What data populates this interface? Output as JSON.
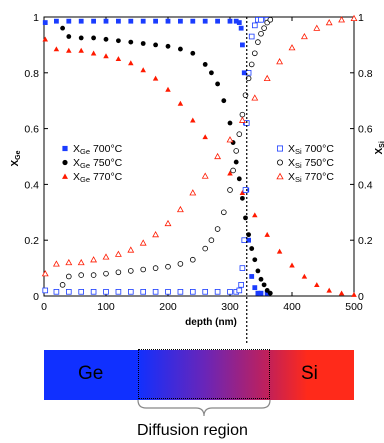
{
  "chart_data": {
    "type": "scatter",
    "xlabel": "depth (nm)",
    "ylabel_main": "X",
    "ylabel_sub": "Ge",
    "ylabel_right_main": "X",
    "ylabel_right_sub": "Si",
    "xlim": [
      0,
      500
    ],
    "ylim": [
      0,
      1
    ],
    "x_ticks": [
      "0",
      "100",
      "200",
      "300",
      "400",
      "500"
    ],
    "y_ticks": [
      "0",
      "0.2",
      "0.4",
      "0.6",
      "0.8",
      "1"
    ],
    "y_ticks_right": [
      "0",
      "0.2",
      "0.4",
      "0.6",
      "0.8",
      "1"
    ],
    "divider_x": 327,
    "series": [
      {
        "name": "700°C",
        "element": "Ge",
        "marker": "square-filled",
        "color": "#1a3cff",
        "x": [
          2,
          20,
          40,
          60,
          80,
          100,
          120,
          140,
          160,
          180,
          200,
          220,
          240,
          260,
          280,
          300,
          310,
          315,
          318,
          320,
          323,
          325,
          327,
          330,
          335,
          340,
          345,
          350,
          360
        ],
        "y": [
          0.98,
          0.985,
          0.985,
          0.985,
          0.985,
          0.985,
          0.985,
          0.985,
          0.985,
          0.985,
          0.985,
          0.985,
          0.985,
          0.985,
          0.985,
          0.985,
          0.985,
          0.98,
          0.96,
          0.9,
          0.8,
          0.62,
          0.38,
          0.2,
          0.07,
          0.03,
          0.01,
          0.01,
          0.01
        ]
      },
      {
        "name": "750°C",
        "element": "Ge",
        "marker": "circle-filled",
        "color": "#000000",
        "x": [
          30,
          40,
          60,
          80,
          100,
          120,
          140,
          160,
          180,
          200,
          220,
          240,
          260,
          270,
          280,
          290,
          300,
          305,
          310,
          315,
          320,
          325,
          330,
          335,
          340,
          345,
          350,
          355,
          360,
          365
        ],
        "y": [
          0.96,
          0.93,
          0.925,
          0.925,
          0.92,
          0.915,
          0.91,
          0.905,
          0.9,
          0.895,
          0.885,
          0.87,
          0.83,
          0.8,
          0.76,
          0.7,
          0.62,
          0.55,
          0.48,
          0.42,
          0.35,
          0.28,
          0.22,
          0.17,
          0.13,
          0.09,
          0.06,
          0.04,
          0.02,
          0.01
        ]
      },
      {
        "name": "770°C",
        "element": "Ge",
        "marker": "triangle-filled",
        "color": "#ff1a00",
        "x": [
          2,
          20,
          40,
          60,
          80,
          100,
          120,
          140,
          160,
          180,
          200,
          220,
          240,
          260,
          280,
          300,
          320,
          340,
          360,
          380,
          400,
          420,
          440,
          460,
          480,
          500
        ],
        "y": [
          0.92,
          0.885,
          0.88,
          0.88,
          0.87,
          0.86,
          0.85,
          0.835,
          0.81,
          0.78,
          0.74,
          0.69,
          0.63,
          0.57,
          0.5,
          0.44,
          0.37,
          0.29,
          0.22,
          0.16,
          0.11,
          0.07,
          0.04,
          0.02,
          0.01,
          0.005
        ]
      },
      {
        "name": "700°C",
        "element": "Si",
        "marker": "square-open",
        "color": "#1a3cff",
        "x": [
          2,
          20,
          40,
          60,
          80,
          100,
          120,
          140,
          160,
          180,
          200,
          220,
          240,
          260,
          280,
          300,
          310,
          315,
          318,
          320,
          323,
          325,
          327,
          330,
          335,
          340,
          345,
          350,
          360
        ],
        "y": [
          0.02,
          0.015,
          0.015,
          0.015,
          0.015,
          0.015,
          0.015,
          0.015,
          0.015,
          0.015,
          0.015,
          0.015,
          0.015,
          0.015,
          0.015,
          0.015,
          0.015,
          0.02,
          0.04,
          0.1,
          0.2,
          0.38,
          0.62,
          0.8,
          0.93,
          0.97,
          0.99,
          0.99,
          0.99
        ]
      },
      {
        "name": "750°C",
        "element": "Si",
        "marker": "circle-open",
        "color": "#000000",
        "x": [
          30,
          40,
          60,
          80,
          100,
          120,
          140,
          160,
          180,
          200,
          220,
          240,
          260,
          270,
          280,
          290,
          300,
          305,
          310,
          315,
          320,
          325,
          330,
          335,
          340,
          345,
          350,
          355,
          360,
          365
        ],
        "y": [
          0.04,
          0.07,
          0.075,
          0.075,
          0.08,
          0.085,
          0.09,
          0.095,
          0.1,
          0.105,
          0.115,
          0.13,
          0.17,
          0.2,
          0.24,
          0.3,
          0.38,
          0.45,
          0.52,
          0.58,
          0.65,
          0.72,
          0.78,
          0.83,
          0.87,
          0.91,
          0.94,
          0.96,
          0.98,
          0.99
        ]
      },
      {
        "name": "770°C",
        "element": "Si",
        "marker": "triangle-open",
        "color": "#ff1a00",
        "x": [
          2,
          20,
          40,
          60,
          80,
          100,
          120,
          140,
          160,
          180,
          200,
          220,
          240,
          260,
          280,
          300,
          320,
          340,
          360,
          380,
          400,
          420,
          440,
          460,
          480,
          500
        ],
        "y": [
          0.08,
          0.115,
          0.12,
          0.12,
          0.13,
          0.14,
          0.15,
          0.165,
          0.19,
          0.22,
          0.26,
          0.31,
          0.37,
          0.43,
          0.5,
          0.56,
          0.63,
          0.71,
          0.78,
          0.84,
          0.89,
          0.93,
          0.96,
          0.98,
          0.99,
          0.995
        ]
      }
    ],
    "legend_left": [
      {
        "main": "X",
        "sub": "Ge",
        "temp": " 700°C",
        "marker": "square-filled",
        "color": "#1a3cff"
      },
      {
        "main": "X",
        "sub": "Ge",
        "temp": " 750°C",
        "marker": "circle-filled",
        "color": "#000000"
      },
      {
        "main": "X",
        "sub": "Ge",
        "temp": " 770°C",
        "marker": "triangle-filled",
        "color": "#ff1a00"
      }
    ],
    "legend_right": [
      {
        "main": "X",
        "sub": "Si",
        "temp": " 700°C",
        "marker": "square-open",
        "color": "#1a3cff"
      },
      {
        "main": "X",
        "sub": "Si",
        "temp": " 750°C",
        "marker": "circle-open",
        "color": "#000000"
      },
      {
        "main": "X",
        "sub": "Si",
        "temp": " 770°C",
        "marker": "triangle-open",
        "color": "#ff1a00"
      }
    ]
  },
  "bar": {
    "left_label": "Ge",
    "right_label": "Si",
    "left_color": "#1030ff",
    "right_color": "#ff2a1a",
    "caption": "Diffusion region"
  }
}
